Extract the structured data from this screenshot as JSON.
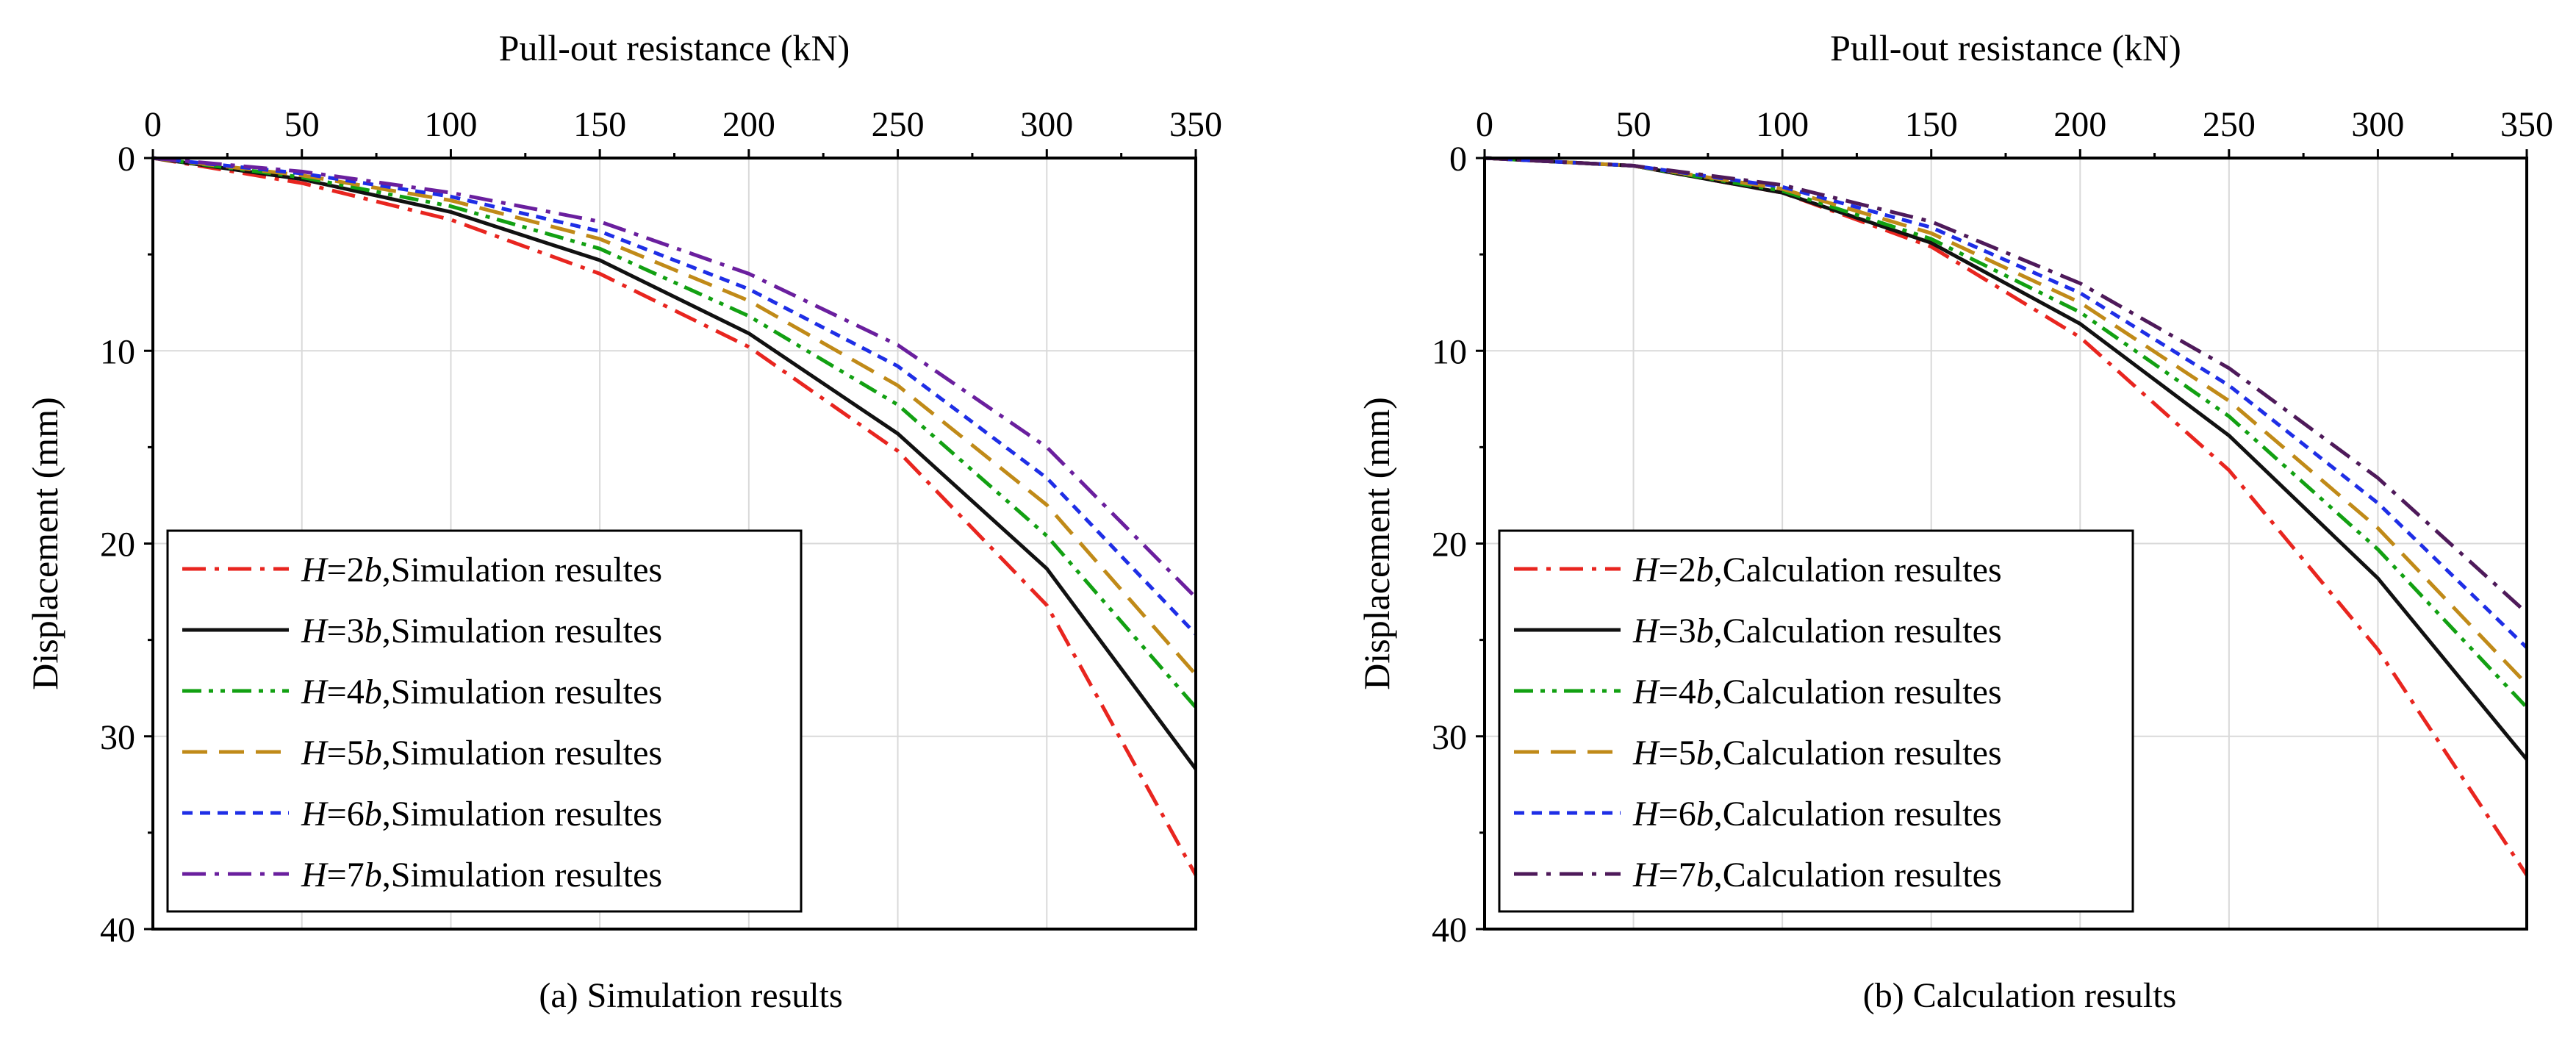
{
  "figure": {
    "colors": {
      "H=2b": "#e8251f",
      "H=3b": "#111111",
      "H=4b": "#12a012",
      "H=5b": "#c08a18",
      "H=6b": "#1e2ee6",
      "H=7b_a": "#6a1f9e",
      "H=7b_b": "#4e1a5a"
    }
  },
  "chart_data": [
    {
      "type": "line",
      "title": "(a) Simulation results",
      "xlabel": "Pull-out resistance (kN)",
      "ylabel": "Displacement (mm)",
      "xlim": [
        0,
        350
      ],
      "ylim": [
        0,
        40
      ],
      "y_inverted": true,
      "x_axis_position": "top",
      "grid": true,
      "legend_position": "bottom-left",
      "xticks": [
        "0",
        "50",
        "100",
        "150",
        "200",
        "250",
        "300",
        "350"
      ],
      "yticks": [
        "0",
        "10",
        "20",
        "30",
        "40"
      ],
      "x": [
        0,
        50,
        100,
        150,
        200,
        250,
        300,
        350
      ],
      "series": [
        {
          "name": "H=2b",
          "legend": {
            "prefix": "H",
            "eq": "=2",
            "b": "b",
            "suffix": ",Simulation resultes"
          },
          "style": "dashdot",
          "color": "#e8251f",
          "values": [
            0,
            1.3,
            3.2,
            6.0,
            9.8,
            15.2,
            23.2,
            37.2
          ]
        },
        {
          "name": "H=3b",
          "legend": {
            "prefix": "H",
            "eq": "=3",
            "b": "b",
            "suffix": ",Simulation resultes"
          },
          "style": "solid",
          "color": "#111111",
          "values": [
            0,
            1.1,
            2.8,
            5.3,
            9.1,
            14.3,
            21.3,
            31.7
          ]
        },
        {
          "name": "H=4b",
          "legend": {
            "prefix": "H",
            "eq": "=4",
            "b": "b",
            "suffix": ",Simulation resultes"
          },
          "style": "dashdotdot",
          "color": "#12a012",
          "values": [
            0,
            1.0,
            2.5,
            4.7,
            8.2,
            12.8,
            19.6,
            28.5
          ]
        },
        {
          "name": "H=5b",
          "legend": {
            "prefix": "H",
            "eq": "=5",
            "b": "b",
            "suffix": ",Simulation resultes"
          },
          "style": "dash",
          "color": "#c08a18",
          "values": [
            0,
            0.9,
            2.2,
            4.2,
            7.4,
            11.8,
            18.0,
            26.8
          ]
        },
        {
          "name": "H=6b",
          "legend": {
            "prefix": "H",
            "eq": "=6",
            "b": "b",
            "suffix": ",Simulation resultes"
          },
          "style": "shortdash",
          "color": "#1e2ee6",
          "values": [
            0,
            0.8,
            2.0,
            3.8,
            6.8,
            10.8,
            16.6,
            24.7
          ]
        },
        {
          "name": "H=7b",
          "legend": {
            "prefix": "H",
            "eq": "=7",
            "b": "b",
            "suffix": ",Simulation resultes"
          },
          "style": "dashdot",
          "color": "#6a1f9e",
          "values": [
            0,
            0.7,
            1.8,
            3.3,
            6.0,
            9.7,
            15.0,
            22.8
          ]
        }
      ]
    },
    {
      "type": "line",
      "title": "(b) Calculation results",
      "xlabel": "Pull-out resistance (kN)",
      "ylabel": "Displacement (mm)",
      "xlim": [
        0,
        350
      ],
      "ylim": [
        0,
        40
      ],
      "y_inverted": true,
      "x_axis_position": "top",
      "grid": true,
      "legend_position": "bottom-left",
      "xticks": [
        "0",
        "50",
        "100",
        "150",
        "200",
        "250",
        "300",
        "350"
      ],
      "yticks": [
        "0",
        "10",
        "20",
        "30",
        "40"
      ],
      "x": [
        0,
        50,
        100,
        150,
        200,
        250,
        300,
        350
      ],
      "series": [
        {
          "name": "H=2b",
          "legend": {
            "prefix": "H",
            "eq": "=2",
            "b": "b",
            "suffix": ",Calculation resultes"
          },
          "style": "dashdot",
          "color": "#e8251f",
          "values": [
            0,
            0.4,
            1.8,
            4.6,
            9.3,
            16.2,
            25.5,
            37.2
          ]
        },
        {
          "name": "H=3b",
          "legend": {
            "prefix": "H",
            "eq": "=3",
            "b": "b",
            "suffix": ",Calculation resultes"
          },
          "style": "solid",
          "color": "#111111",
          "values": [
            0,
            0.4,
            1.8,
            4.4,
            8.6,
            14.4,
            21.8,
            31.2
          ]
        },
        {
          "name": "H=4b",
          "legend": {
            "prefix": "H",
            "eq": "=4",
            "b": "b",
            "suffix": ",Calculation resultes"
          },
          "style": "dashdotdot",
          "color": "#12a012",
          "values": [
            0,
            0.4,
            1.7,
            4.2,
            8.0,
            13.4,
            20.3,
            28.5
          ]
        },
        {
          "name": "H=5b",
          "legend": {
            "prefix": "H",
            "eq": "=5",
            "b": "b",
            "suffix": ",Calculation resultes"
          },
          "style": "dash",
          "color": "#c08a18",
          "values": [
            0,
            0.4,
            1.6,
            3.9,
            7.5,
            12.6,
            19.2,
            27.3
          ]
        },
        {
          "name": "H=6b",
          "legend": {
            "prefix": "H",
            "eq": "=6",
            "b": "b",
            "suffix": ",Calculation resultes"
          },
          "style": "shortdash",
          "color": "#1e2ee6",
          "values": [
            0,
            0.4,
            1.5,
            3.6,
            7.0,
            11.8,
            17.9,
            25.4
          ]
        },
        {
          "name": "H=7b",
          "legend": {
            "prefix": "H",
            "eq": "=7",
            "b": "b",
            "suffix": ",Calculation resultes"
          },
          "style": "dashdot",
          "color": "#4e1a5a",
          "values": [
            0,
            0.4,
            1.4,
            3.3,
            6.5,
            10.9,
            16.6,
            23.6
          ]
        }
      ]
    }
  ]
}
